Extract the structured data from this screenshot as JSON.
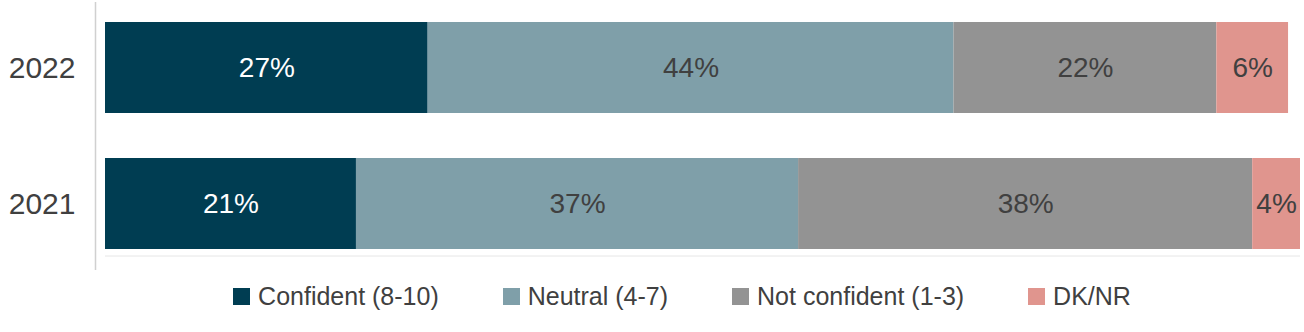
{
  "chart_data": {
    "type": "bar",
    "orientation": "horizontal",
    "stacked": true,
    "data_labels": true,
    "tick_labels": "y",
    "legend": "bottom",
    "categories": [
      "2022",
      "2021"
    ],
    "xlim": [
      0,
      100
    ],
    "series": [
      {
        "name": "Confident (8-10)",
        "color": "#003d52",
        "values": [
          27,
          21
        ],
        "value_labels": [
          "27%",
          "21%"
        ]
      },
      {
        "name": "Neutral (4-7)",
        "color": "#7f9fa9",
        "values": [
          44,
          37
        ],
        "value_labels": [
          "44%",
          "37%"
        ]
      },
      {
        "name": "Not confident (1-3)",
        "color": "#939393",
        "values": [
          22,
          38
        ],
        "value_labels": [
          "22%",
          "38%"
        ]
      },
      {
        "name": "DK/NR",
        "color": "#e0958e",
        "values": [
          6,
          4
        ],
        "value_labels": [
          "6%",
          "4%"
        ]
      }
    ]
  }
}
